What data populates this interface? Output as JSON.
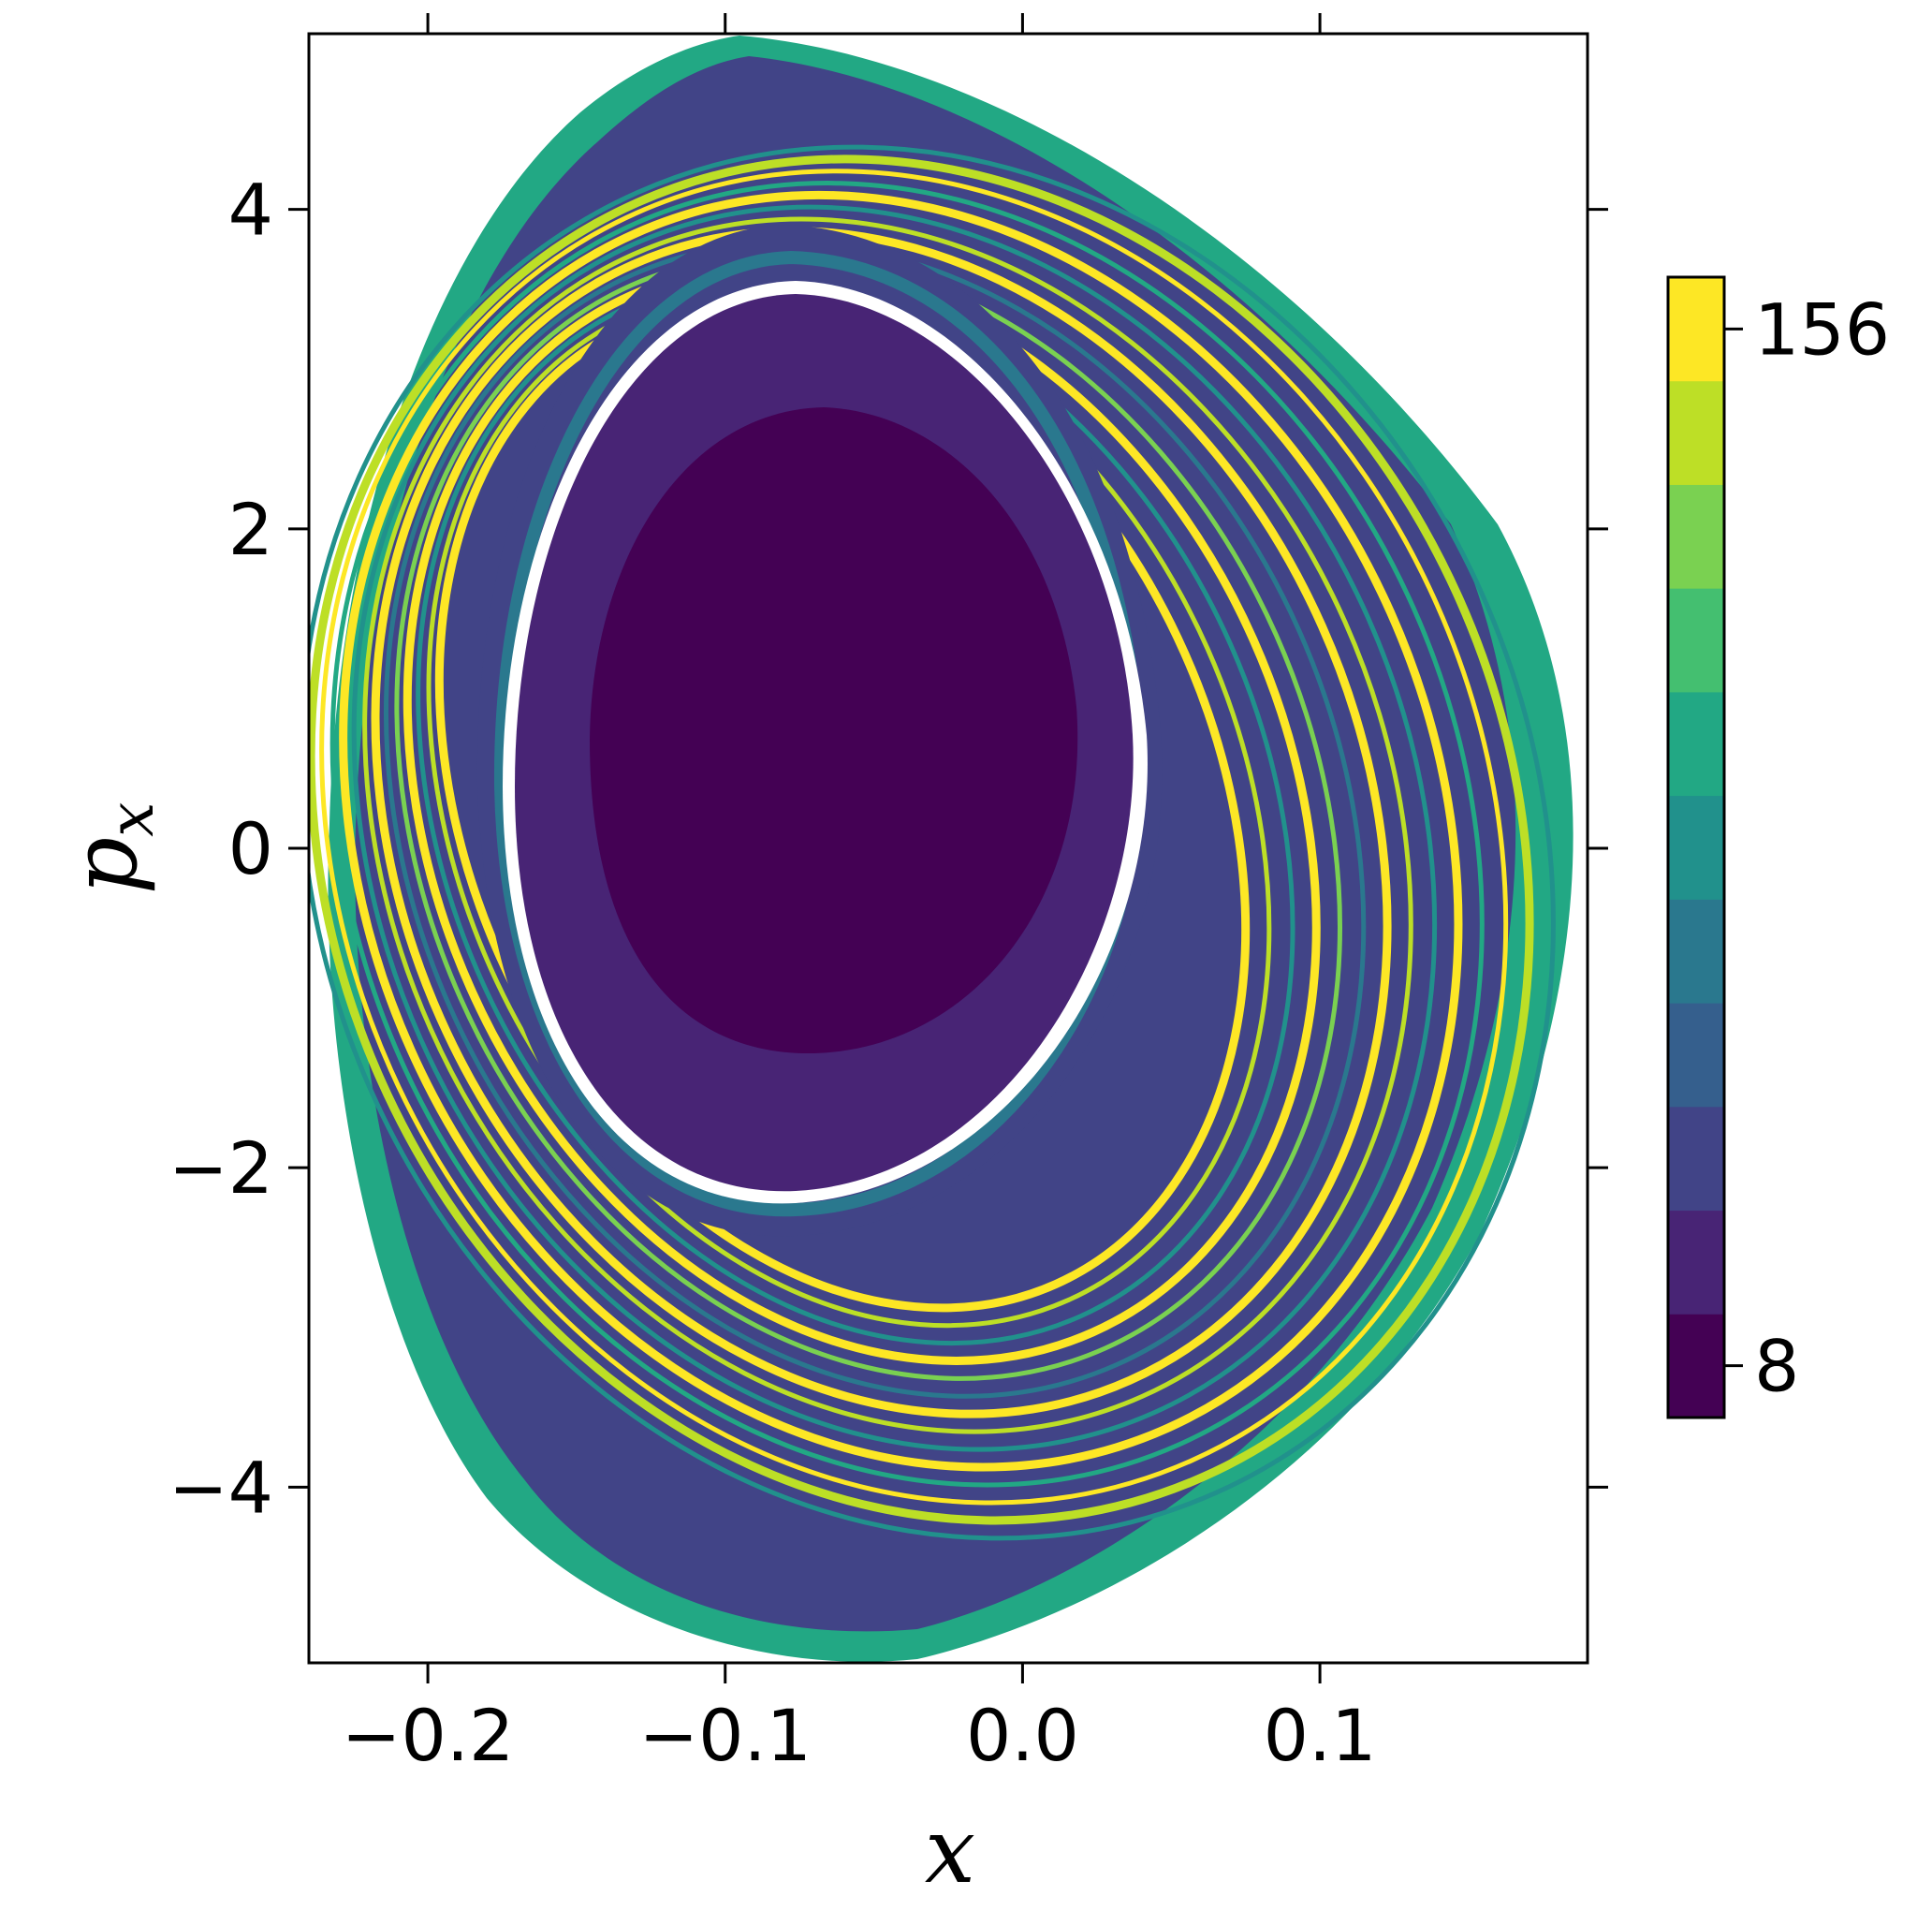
{
  "chart_data": {
    "type": "heatmap",
    "title": "",
    "xlabel": "x",
    "ylabel_main": "p",
    "ylabel_sub": "x",
    "xlim": [
      -0.24,
      0.19
    ],
    "ylim": [
      -5.1,
      5.1
    ],
    "x_ticks": [
      -0.2,
      -0.1,
      0.0,
      0.1
    ],
    "x_tick_labels": [
      "−0.2",
      "−0.1",
      "0.0",
      "0.1"
    ],
    "y_ticks": [
      -4,
      -2,
      0,
      2,
      4
    ],
    "y_tick_labels": [
      "−4",
      "−2",
      "0",
      "2",
      "4"
    ],
    "grid": false,
    "colormap": "viridis",
    "colorbar": {
      "levels": 11,
      "colors": [
        "#440154",
        "#482475",
        "#414487",
        "#355f8d",
        "#2a788e",
        "#21918c",
        "#22a884",
        "#44bf70",
        "#7ad151",
        "#bddf26",
        "#fde725"
      ],
      "tick_values": [
        8,
        156
      ],
      "tick_labels": [
        "8",
        "156"
      ]
    },
    "regions": [
      {
        "name": "outer-domain-edge",
        "color_level": 6
      },
      {
        "name": "outer-band",
        "color_level": 2
      },
      {
        "name": "middle-band",
        "color_level": 3
      },
      {
        "name": "gap-separatrix",
        "color_level": -1
      },
      {
        "name": "inner-island",
        "color_level": 1
      },
      {
        "name": "island-core",
        "color_level": 0
      }
    ]
  }
}
